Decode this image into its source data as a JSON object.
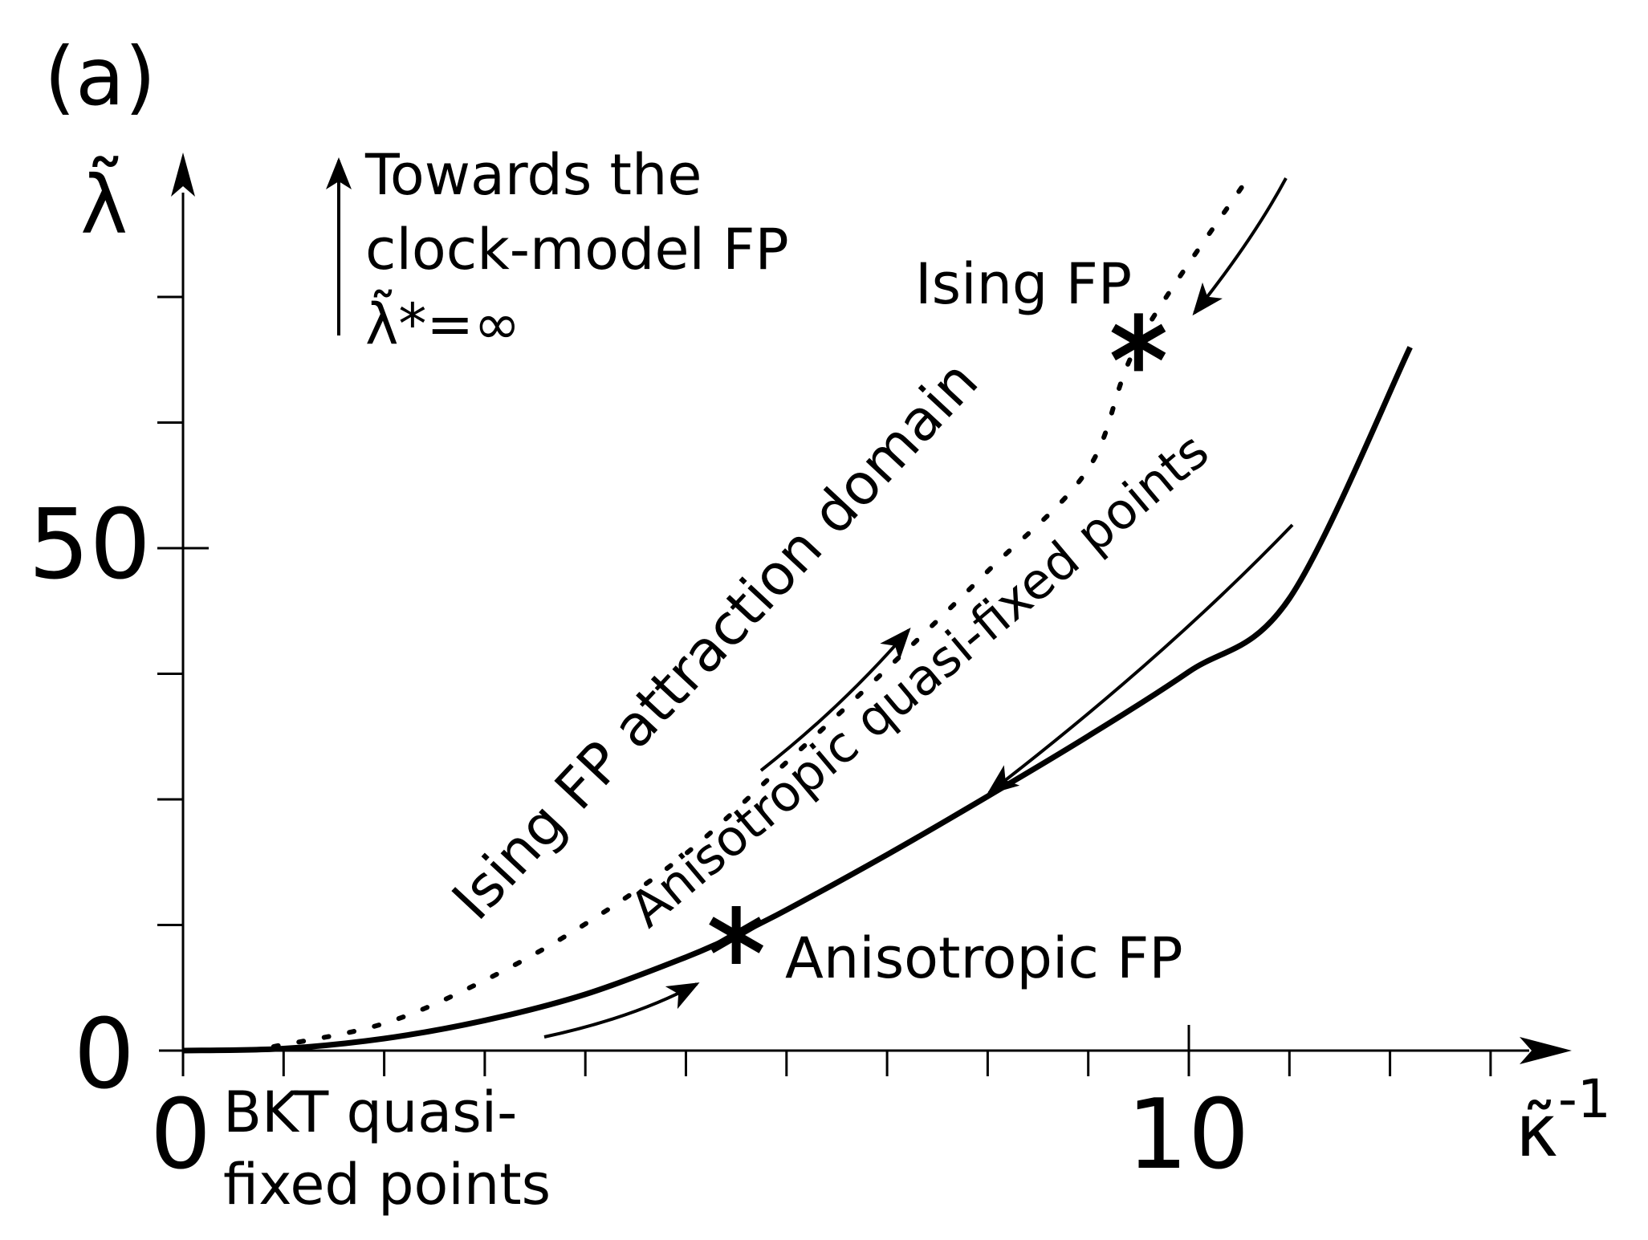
{
  "panel_label": "(a)",
  "y_axis_symbol": "λ̃",
  "x_axis_symbol": "κ̃",
  "x_axis_exponent": "-1",
  "x_tick_labels": [
    "0",
    "10"
  ],
  "y_tick_labels": [
    "0",
    "50"
  ],
  "annotations": {
    "towards_line1": "Towards the",
    "towards_line2": "clock-model FP",
    "towards_line3": "λ̃*=∞",
    "ising_fp": "Ising FP",
    "ising_domain": "Ising FP attraction domain",
    "aniso_quasi": "Anisotropic quasi-fixed points",
    "aniso_fp": "Anisotropic FP",
    "bkt_line1": "BKT quasi-",
    "bkt_line2": "fixed points"
  },
  "chart_data": {
    "type": "line",
    "xlabel": "κ̃^-1",
    "ylabel": "λ̃",
    "xlim": [
      0,
      13.5
    ],
    "ylim": [
      0,
      78
    ],
    "x_major_ticks": [
      0,
      10
    ],
    "y_major_ticks": [
      0,
      50
    ],
    "series": [
      {
        "name": "Anisotropic quasi-fixed points",
        "style": "solid",
        "x": [
          0,
          1,
          2,
          3,
          4,
          5,
          5.5,
          6,
          7,
          8,
          9,
          10,
          11,
          12.2
        ],
        "y": [
          0,
          0.2,
          1.2,
          3.0,
          5.6,
          9.3,
          11.5,
          14.0,
          19.5,
          25.3,
          31.3,
          37.7,
          45.0,
          70.0
        ]
      },
      {
        "name": "Ising FP attraction domain",
        "style": "dotted",
        "x": [
          0.9,
          2,
          3,
          4,
          5,
          6,
          7,
          8,
          9,
          9.5,
          10.6
        ],
        "y": [
          0.4,
          2.7,
          7.0,
          12.6,
          19.6,
          28.7,
          38.0,
          47.7,
          57.9,
          70.5,
          87.0
        ]
      }
    ],
    "fixed_points": [
      {
        "name": "Anisotropic FP",
        "x": 5.5,
        "y": 11.5
      },
      {
        "name": "Ising FP",
        "x": 9.5,
        "y": 70.5
      }
    ]
  }
}
